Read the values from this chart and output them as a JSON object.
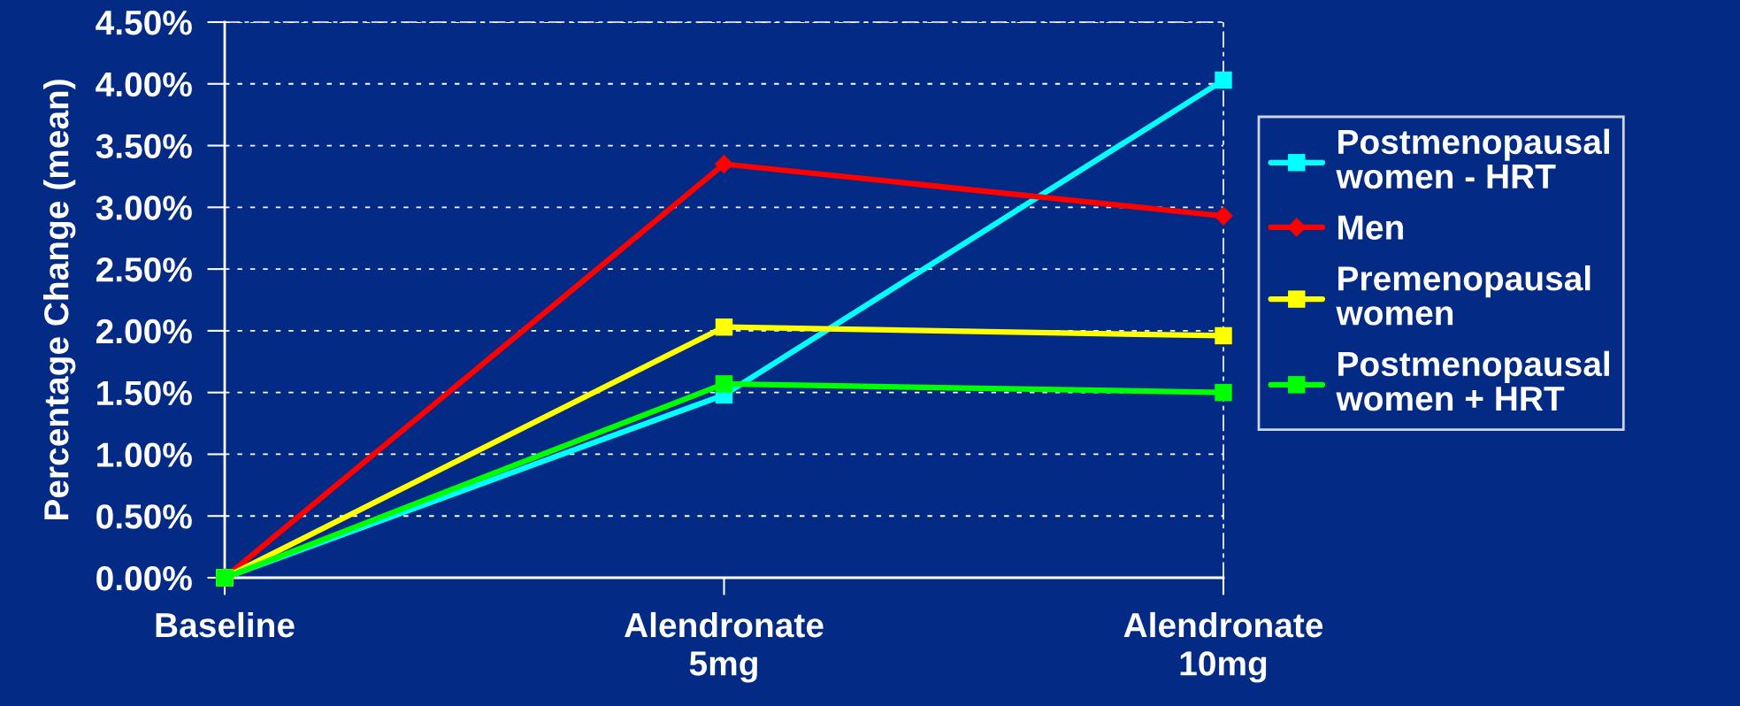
{
  "chart_data": {
    "type": "line",
    "ylabel": "Percentage Change (mean)",
    "categories": [
      "Baseline",
      "Alendronate\n5mg",
      "Alendronate\n10mg"
    ],
    "series": [
      {
        "name": "Postmenopausal\nwomen - HRT",
        "color": "#00ffff",
        "marker": "square",
        "values": [
          0,
          1.48,
          4.03
        ]
      },
      {
        "name": "Men",
        "color": "#ff0000",
        "marker": "diamond",
        "values": [
          0,
          3.35,
          2.93
        ]
      },
      {
        "name": "Premenopausal\nwomen",
        "color": "#ffff00",
        "marker": "square",
        "values": [
          0,
          2.03,
          1.96
        ]
      },
      {
        "name": "Postmenopausal\nwomen + HRT",
        "color": "#00ff00",
        "marker": "square",
        "values": [
          0,
          1.57,
          1.5
        ]
      }
    ],
    "ylim": [
      0,
      4.5
    ],
    "yticks": [
      {
        "value": 0,
        "label": "0.00%"
      },
      {
        "value": 0.5,
        "label": "0.50%"
      },
      {
        "value": 1,
        "label": "1.00%"
      },
      {
        "value": 1.5,
        "label": "1.50%"
      },
      {
        "value": 2,
        "label": "2.00%"
      },
      {
        "value": 2.5,
        "label": "2.50%"
      },
      {
        "value": 3,
        "label": "3.00%"
      },
      {
        "value": 3.5,
        "label": "3.50%"
      },
      {
        "value": 4,
        "label": "4.00%"
      },
      {
        "value": 4.5,
        "label": "4.50%"
      }
    ],
    "grid": "y",
    "legend": "right",
    "line_style": "solid"
  }
}
